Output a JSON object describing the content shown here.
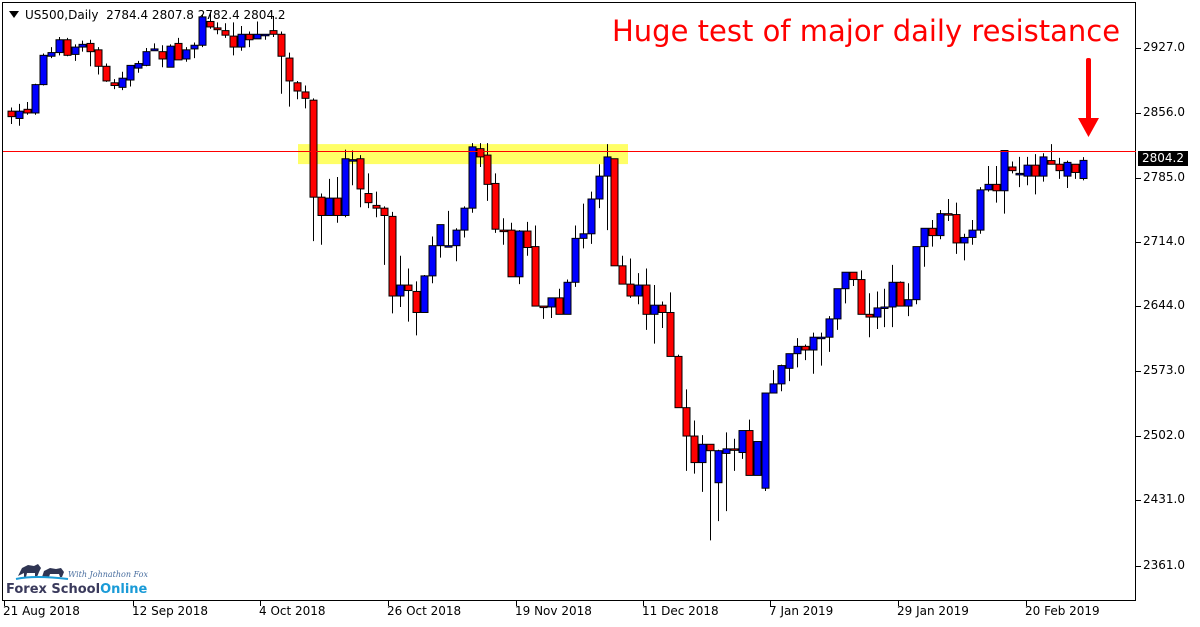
{
  "header": {
    "symbol": "US500,Daily",
    "ohlc": "2784.4 2807.8 2782.4 2804.2"
  },
  "annotation": {
    "text": "Huge test of major daily resistance",
    "color": "#ff0000"
  },
  "price_tag": "2804.2",
  "logo": {
    "tagline": "With Johnathon Fox",
    "name_part1": "Forex School",
    "name_part2": "Online"
  },
  "colors": {
    "bull": "#0000ff",
    "bear": "#ff0000",
    "wick": "#000000",
    "resistance_line": "#ff0000",
    "zone": "#ffff66",
    "arrow": "#ff0000"
  },
  "y_axis": {
    "ticks": [
      "2927.0",
      "2856.0",
      "2785.0",
      "2714.0",
      "2644.0",
      "2573.0",
      "2502.0",
      "2431.0",
      "2361.0"
    ]
  },
  "x_axis": {
    "ticks": [
      "21 Aug 2018",
      "12 Sep 2018",
      "4 Oct 2018",
      "26 Oct 2018",
      "19 Nov 2018",
      "11 Dec 2018",
      "7 Jan 2019",
      "29 Jan 2019",
      "20 Feb 2019"
    ]
  },
  "chart_data": {
    "type": "candlestick",
    "title": "US500,Daily",
    "subtitle": "2784.4 2807.8 2782.4 2804.2",
    "annotation": "Huge test of major daily resistance",
    "xlabel": "",
    "ylabel": "",
    "ylim": [
      2330,
      2985
    ],
    "y_ticks": [
      2927.0,
      2856.0,
      2785.0,
      2714.0,
      2644.0,
      2573.0,
      2502.0,
      2431.0,
      2361.0
    ],
    "x_ticks": [
      "21 Aug 2018",
      "12 Sep 2018",
      "4 Oct 2018",
      "26 Oct 2018",
      "19 Nov 2018",
      "11 Dec 2018",
      "7 Jan 2019",
      "29 Jan 2019",
      "20 Feb 2019"
    ],
    "resistance_level": 2806,
    "resistance_zone": [
      2800,
      2822
    ],
    "last_price": 2804.2,
    "grid": false,
    "candles": [
      [
        2858,
        2862,
        2844,
        2852
      ],
      [
        2850,
        2866,
        2842,
        2858
      ],
      [
        2860,
        2868,
        2854,
        2856
      ],
      [
        2856,
        2888,
        2854,
        2887
      ],
      [
        2887,
        2921,
        2886,
        2919
      ],
      [
        2918,
        2928,
        2916,
        2922
      ],
      [
        2922,
        2939,
        2919,
        2936
      ],
      [
        2936,
        2938,
        2918,
        2919
      ],
      [
        2920,
        2931,
        2913,
        2928
      ],
      [
        2928,
        2935,
        2923,
        2931
      ],
      [
        2932,
        2936,
        2907,
        2923
      ],
      [
        2925,
        2928,
        2898,
        2907
      ],
      [
        2907,
        2910,
        2890,
        2891
      ],
      [
        2889,
        2893,
        2882,
        2886
      ],
      [
        2884,
        2901,
        2881,
        2894
      ],
      [
        2892,
        2905,
        2885,
        2908
      ],
      [
        2905,
        2913,
        2900,
        2910
      ],
      [
        2908,
        2927,
        2907,
        2923
      ],
      [
        2924,
        2932,
        2924,
        2926
      ],
      [
        2923,
        2930,
        2906,
        2915
      ],
      [
        2906,
        2931,
        2906,
        2929
      ],
      [
        2932,
        2938,
        2921,
        2914
      ],
      [
        2915,
        2928,
        2912,
        2925
      ],
      [
        2926,
        2933,
        2916,
        2930
      ],
      [
        2930,
        2963,
        2928,
        2961
      ],
      [
        2956,
        2966,
        2948,
        2950
      ],
      [
        2949,
        2955,
        2942,
        2947
      ],
      [
        2946,
        2954,
        2938,
        2941
      ],
      [
        2940,
        2955,
        2919,
        2928
      ],
      [
        2928,
        2951,
        2924,
        2942
      ],
      [
        2942,
        2945,
        2928,
        2936
      ],
      [
        2937,
        2956,
        2937,
        2942
      ],
      [
        2942,
        2942,
        2936,
        2942
      ],
      [
        2946,
        2962,
        2939,
        2942
      ],
      [
        2942,
        2945,
        2877,
        2918
      ],
      [
        2916,
        2922,
        2863,
        2891
      ],
      [
        2889,
        2891,
        2871,
        2880
      ],
      [
        2879,
        2886,
        2861,
        2872
      ],
      [
        2870,
        2872,
        2716,
        2764
      ],
      [
        2764,
        2768,
        2712,
        2744
      ],
      [
        2744,
        2784,
        2752,
        2763
      ],
      [
        2763,
        2786,
        2736,
        2744
      ],
      [
        2744,
        2816,
        2742,
        2806
      ],
      [
        2804,
        2815,
        2777,
        2805
      ],
      [
        2806,
        2810,
        2753,
        2773
      ],
      [
        2768,
        2790,
        2752,
        2758
      ],
      [
        2755,
        2770,
        2742,
        2752
      ],
      [
        2752,
        2754,
        2690,
        2744
      ],
      [
        2743,
        2748,
        2637,
        2656
      ],
      [
        2656,
        2700,
        2644,
        2668
      ],
      [
        2668,
        2686,
        2628,
        2662
      ],
      [
        2661,
        2672,
        2613,
        2638
      ],
      [
        2638,
        2679,
        2658,
        2678
      ],
      [
        2678,
        2721,
        2670,
        2711
      ],
      [
        2711,
        2729,
        2698,
        2734
      ],
      [
        2711,
        2749,
        2710,
        2711
      ],
      [
        2711,
        2730,
        2694,
        2728
      ],
      [
        2728,
        2754,
        2720,
        2752
      ],
      [
        2752,
        2823,
        2747,
        2819
      ],
      [
        2817,
        2823,
        2797,
        2808
      ],
      [
        2810,
        2823,
        2760,
        2778
      ],
      [
        2779,
        2790,
        2725,
        2729
      ],
      [
        2728,
        2741,
        2712,
        2727
      ],
      [
        2728,
        2736,
        2678,
        2677
      ],
      [
        2677,
        2728,
        2669,
        2727
      ],
      [
        2727,
        2737,
        2700,
        2709
      ],
      [
        2710,
        2733,
        2664,
        2645
      ],
      [
        2645,
        2645,
        2631,
        2644
      ],
      [
        2644,
        2651,
        2632,
        2654
      ],
      [
        2654,
        2664,
        2639,
        2636
      ],
      [
        2636,
        2674,
        2652,
        2671
      ],
      [
        2671,
        2733,
        2666,
        2719
      ],
      [
        2719,
        2757,
        2708,
        2724
      ],
      [
        2724,
        2770,
        2713,
        2762
      ],
      [
        2762,
        2800,
        2752,
        2787
      ],
      [
        2787,
        2822,
        2728,
        2808
      ],
      [
        2806,
        2790,
        2773,
        2689
      ],
      [
        2689,
        2700,
        2682,
        2669
      ],
      [
        2669,
        2697,
        2654,
        2656
      ],
      [
        2656,
        2681,
        2647,
        2668
      ],
      [
        2668,
        2686,
        2619,
        2636
      ],
      [
        2636,
        2668,
        2604,
        2646
      ],
      [
        2646,
        2650,
        2621,
        2638
      ],
      [
        2638,
        2660,
        2590,
        2590
      ],
      [
        2590,
        2592,
        2555,
        2534
      ],
      [
        2534,
        2554,
        2465,
        2503
      ],
      [
        2503,
        2520,
        2462,
        2474
      ],
      [
        2474,
        2504,
        2442,
        2494
      ],
      [
        2494,
        2476,
        2389,
        2487
      ],
      [
        2452,
        2488,
        2410,
        2487
      ],
      [
        2484,
        2507,
        2421,
        2489
      ],
      [
        2489,
        2500,
        2465,
        2488
      ],
      [
        2485,
        2507,
        2478,
        2509
      ],
      [
        2509,
        2521,
        2464,
        2460
      ],
      [
        2460,
        2496,
        2466,
        2497
      ],
      [
        2446,
        2543,
        2443,
        2550
      ],
      [
        2550,
        2575,
        2550,
        2560
      ],
      [
        2560,
        2581,
        2552,
        2580
      ],
      [
        2577,
        2590,
        2563,
        2593
      ],
      [
        2593,
        2610,
        2578,
        2601
      ],
      [
        2601,
        2603,
        2586,
        2597
      ],
      [
        2597,
        2616,
        2571,
        2611
      ],
      [
        2611,
        2616,
        2580,
        2611
      ],
      [
        2611,
        2634,
        2595,
        2631
      ],
      [
        2631,
        2660,
        2619,
        2664
      ],
      [
        2664,
        2680,
        2648,
        2682
      ],
      [
        2682,
        2682,
        2667,
        2674
      ],
      [
        2674,
        2684,
        2638,
        2636
      ],
      [
        2636,
        2659,
        2611,
        2633
      ],
      [
        2633,
        2661,
        2620,
        2643
      ],
      [
        2643,
        2664,
        2622,
        2644
      ],
      [
        2644,
        2690,
        2622,
        2671
      ],
      [
        2671,
        2672,
        2649,
        2645
      ],
      [
        2645,
        2670,
        2634,
        2652
      ],
      [
        2652,
        2708,
        2647,
        2710
      ],
      [
        2710,
        2728,
        2688,
        2730
      ],
      [
        2730,
        2739,
        2710,
        2722
      ],
      [
        2722,
        2750,
        2718,
        2746
      ],
      [
        2746,
        2762,
        2738,
        2745
      ],
      [
        2745,
        2758,
        2702,
        2714
      ],
      [
        2714,
        2724,
        2695,
        2720
      ],
      [
        2720,
        2739,
        2712,
        2728
      ],
      [
        2728,
        2775,
        2724,
        2772
      ],
      [
        2772,
        2798,
        2770,
        2778
      ],
      [
        2778,
        2798,
        2758,
        2771
      ],
      [
        2771,
        2796,
        2746,
        2815
      ],
      [
        2797,
        2803,
        2790,
        2793
      ],
      [
        2790,
        2808,
        2775,
        2790
      ],
      [
        2787,
        2808,
        2777,
        2799
      ],
      [
        2799,
        2811,
        2767,
        2787
      ],
      [
        2787,
        2812,
        2781,
        2808
      ],
      [
        2804,
        2822,
        2801,
        2800
      ],
      [
        2800,
        2807,
        2784,
        2793
      ],
      [
        2787,
        2804,
        2774,
        2802
      ],
      [
        2800,
        2800,
        2784,
        2791
      ],
      [
        2784.4,
        2807.8,
        2782.4,
        2804.2
      ]
    ]
  }
}
